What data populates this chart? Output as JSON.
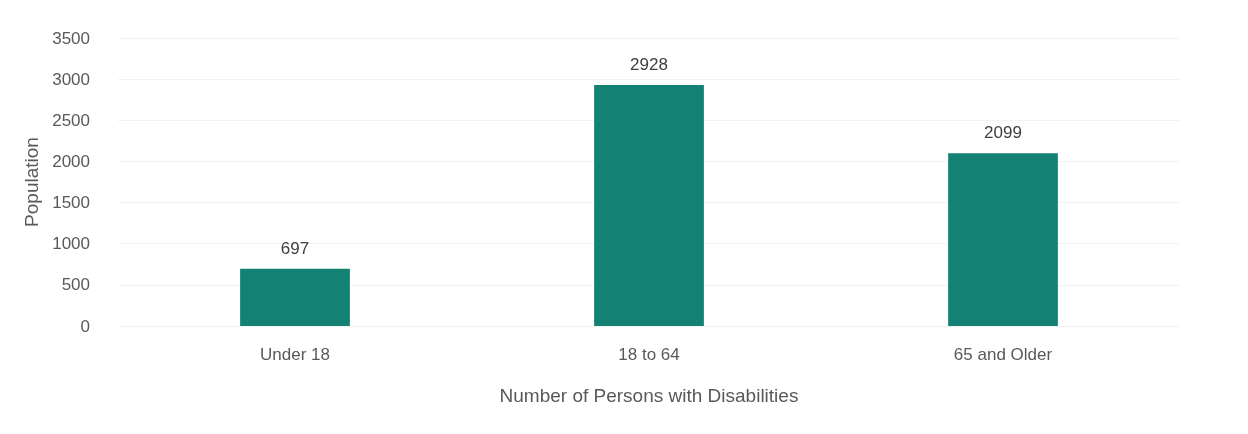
{
  "chart_data": {
    "type": "bar",
    "categories": [
      "Under 18",
      "18 to 64",
      "65 and Older"
    ],
    "values": [
      697,
      2928,
      2099
    ],
    "color": "#138275",
    "xlabel": "Number of Persons with Disabilities",
    "ylabel": "Population",
    "ylim": [
      0,
      3500
    ],
    "yticks": [
      0,
      500,
      1000,
      1500,
      2000,
      2500,
      3000,
      3500
    ],
    "grid": "y",
    "data_labels": true
  }
}
